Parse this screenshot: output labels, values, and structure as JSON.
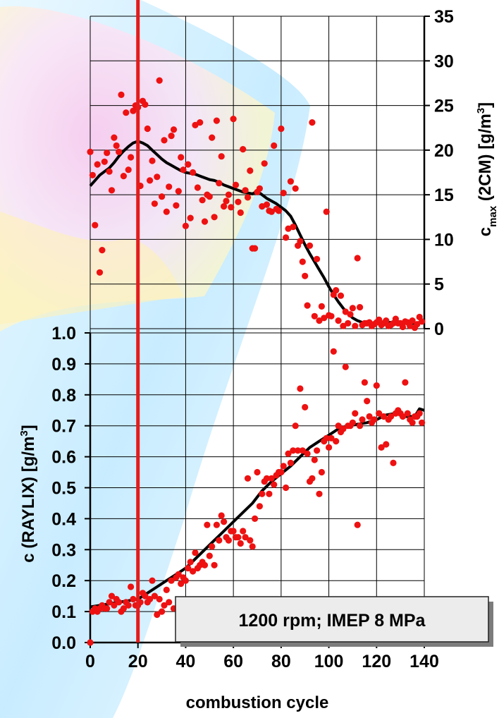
{
  "chart_data": [
    {
      "panel": "upper",
      "type": "scatter",
      "x_range": [
        0,
        140
      ],
      "ylim": [
        0,
        35
      ],
      "y_ticks": [
        0,
        5,
        10,
        15,
        20,
        25,
        30,
        35
      ],
      "y_tick_labels": [
        "0",
        "5",
        "10",
        "15",
        "20",
        "25",
        "30",
        "35"
      ],
      "ylabel": {
        "main": "c",
        "sub": "max",
        "rest": " (2CM) [g/m",
        "sup": "3",
        "end": "]"
      },
      "y_axis_side": "right",
      "grid": true,
      "colors": {
        "points": "#ee1111",
        "line": "#000000"
      },
      "series": [
        {
          "kind": "points",
          "x": [
            0,
            1,
            2,
            3,
            4,
            5,
            6,
            7,
            8,
            9,
            10,
            11,
            12,
            13,
            14,
            15,
            16,
            17,
            18,
            19,
            20,
            21,
            22,
            23,
            24,
            25,
            26,
            27,
            28,
            29,
            30,
            31,
            32,
            33,
            34,
            35,
            36,
            37,
            38,
            39,
            40,
            41,
            42,
            43,
            44,
            45,
            46,
            47,
            48,
            49,
            50,
            51,
            52,
            53,
            54,
            55,
            56,
            57,
            58,
            59,
            60,
            61,
            62,
            63,
            64,
            65,
            66,
            67,
            68,
            69,
            70,
            71,
            72,
            73,
            74,
            75,
            76,
            77,
            78,
            79,
            80,
            81,
            82,
            83,
            84,
            85,
            86,
            87,
            88,
            89,
            90,
            91,
            92,
            93,
            94,
            95,
            96,
            97,
            98,
            99,
            100,
            101,
            102,
            103,
            104,
            105,
            106,
            107,
            108,
            109,
            110,
            111,
            112,
            113,
            114,
            115,
            116,
            117,
            118,
            119,
            120,
            121,
            122,
            123,
            124,
            125,
            126,
            127,
            128,
            129,
            130,
            131,
            132,
            133,
            134,
            135,
            136,
            137,
            138,
            139
          ],
          "y": [
            19.8,
            17.2,
            11.6,
            18.4,
            6.3,
            8.8,
            18.7,
            19.7,
            17.6,
            15.5,
            21.4,
            20.5,
            19.8,
            26.2,
            17.1,
            24.2,
            17.8,
            19.2,
            24.4,
            25.0,
            24.8,
            16.0,
            25.5,
            25.1,
            22.4,
            16.6,
            18.8,
            14.0,
            17.0,
            27.8,
            14.8,
            21.1,
            13.1,
            15.9,
            21.6,
            22.3,
            13.8,
            15.4,
            19.2,
            17.8,
            11.5,
            18.4,
            12.4,
            17.5,
            22.8,
            15.8,
            23.1,
            14.4,
            12.0,
            15.0,
            14.8,
            21.4,
            12.5,
            23.3,
            16.3,
            19.3,
            13.7,
            14.3,
            15.0,
            13.6,
            23.5,
            16.1,
            14.2,
            13.0,
            20.1,
            15.5,
            14.7,
            17.7,
            9.0,
            9.0,
            15.3,
            15.7,
            13.7,
            18.5,
            13.9,
            13.2,
            13.1,
            20.5,
            13.4,
            13.2,
            22.4,
            15.2,
            10.2,
            11.2,
            16.5,
            11.4,
            15.7,
            9.3,
            9.8,
            7.5,
            5.9,
            2.6,
            9.3,
            23.1,
            1.4,
            7.8,
            0.9,
            2.5,
            1.2,
            13.1,
            1.5,
            1.4,
            3.8,
            4.3,
            0.9,
            3.7,
            0.3,
            1.9,
            0.6,
            1.6,
            2.3,
            0.3,
            7.9,
            2.4,
            0.4,
            0.6,
            0.6,
            0.7,
            0.3,
            0.5,
            0.7,
            1.0,
            0.4,
            0.6,
            0.9,
            0.3,
            0.4,
            0.6,
            1.1,
            0.6,
            0.6,
            0.2,
            0.8,
            0.7,
            0.3,
            0.9,
            0.1,
            0.5,
            1.3,
            0.8
          ]
        },
        {
          "kind": "line",
          "x": [
            0,
            2,
            4,
            6,
            8,
            10,
            12,
            14,
            16,
            18,
            20,
            22,
            24,
            26,
            28,
            30,
            32,
            34,
            36,
            38,
            40,
            42,
            44,
            46,
            48,
            50,
            52,
            54,
            56,
            58,
            60,
            62,
            64,
            66,
            68,
            70,
            72,
            74,
            76,
            78,
            80,
            82,
            84,
            86,
            88,
            90,
            92,
            94,
            96,
            98,
            100,
            102,
            104,
            106,
            108,
            110,
            112,
            114,
            116,
            118,
            120,
            122,
            124,
            126,
            128,
            130,
            132,
            134,
            136,
            138,
            140
          ],
          "y": [
            16.0,
            16.6,
            17.2,
            17.6,
            18.0,
            18.6,
            19.3,
            19.9,
            20.4,
            20.8,
            21.0,
            20.8,
            20.5,
            20.0,
            19.5,
            19.0,
            18.6,
            18.3,
            18.0,
            17.7,
            17.5,
            17.4,
            17.3,
            17.1,
            16.9,
            16.7,
            16.6,
            16.4,
            16.1,
            15.9,
            15.7,
            15.5,
            15.3,
            15.2,
            15.1,
            15.4,
            15.0,
            14.6,
            14.3,
            14.0,
            13.6,
            13.2,
            12.6,
            11.6,
            10.5,
            9.4,
            8.4,
            7.5,
            6.6,
            5.7,
            4.7,
            3.8,
            3.0,
            2.3,
            1.7,
            1.2,
            0.9,
            0.7,
            0.6,
            0.6,
            0.6,
            0.6,
            0.7,
            0.7,
            0.6,
            0.6,
            0.6,
            0.6,
            0.6,
            0.7,
            0.7
          ]
        }
      ]
    },
    {
      "panel": "lower",
      "type": "scatter",
      "xlabel": "combustion cycle",
      "xlim": [
        0,
        140
      ],
      "x_ticks": [
        0,
        20,
        40,
        60,
        80,
        100,
        120,
        140
      ],
      "x_tick_labels": [
        "0",
        "20",
        "40",
        "60",
        "80",
        "100",
        "120",
        "140"
      ],
      "ylim": [
        0,
        1.0
      ],
      "y_ticks": [
        0,
        0.1,
        0.2,
        0.3,
        0.4,
        0.5,
        0.6,
        0.7,
        0.8,
        0.9,
        1.0
      ],
      "y_tick_labels": [
        "0.0",
        "0.1",
        "0.2",
        "0.3",
        "0.4",
        "0.5",
        "0.6",
        "0.7",
        "0.8",
        "0.9",
        "1.0"
      ],
      "ylabel": {
        "main": "c (RAYLIX) [g/m",
        "sup": "3",
        "end": "]"
      },
      "y_axis_side": "left",
      "grid": true,
      "colors": {
        "points": "#ee1111",
        "line": "#000000"
      },
      "series": [
        {
          "kind": "points",
          "x": [
            0,
            1,
            2,
            3,
            4,
            5,
            6,
            7,
            8,
            9,
            10,
            11,
            12,
            13,
            14,
            15,
            16,
            17,
            18,
            19,
            20,
            21,
            22,
            23,
            24,
            25,
            26,
            27,
            28,
            29,
            30,
            31,
            32,
            33,
            34,
            35,
            36,
            37,
            38,
            39,
            40,
            41,
            42,
            43,
            44,
            45,
            46,
            47,
            48,
            49,
            50,
            51,
            52,
            53,
            54,
            55,
            56,
            57,
            58,
            59,
            60,
            61,
            62,
            63,
            64,
            65,
            66,
            67,
            68,
            69,
            70,
            71,
            72,
            73,
            74,
            75,
            76,
            77,
            78,
            79,
            80,
            81,
            82,
            83,
            84,
            85,
            86,
            87,
            88,
            89,
            90,
            91,
            92,
            93,
            94,
            95,
            96,
            97,
            98,
            99,
            100,
            101,
            102,
            103,
            104,
            105,
            106,
            107,
            108,
            109,
            110,
            111,
            112,
            113,
            114,
            115,
            116,
            117,
            118,
            119,
            120,
            121,
            122,
            123,
            124,
            125,
            126,
            127,
            128,
            129,
            130,
            131,
            132,
            133,
            134,
            135,
            136,
            137,
            138,
            139
          ],
          "y": [
            0.0,
            0.1,
            0.11,
            0.1,
            0.11,
            0.12,
            0.11,
            0.11,
            0.13,
            0.15,
            0.12,
            0.14,
            0.13,
            0.1,
            0.11,
            0.13,
            0.12,
            0.18,
            0.14,
            0.12,
            0.12,
            0.13,
            0.16,
            0.15,
            0.13,
            0.14,
            0.2,
            0.15,
            0.09,
            0.14,
            0.1,
            0.12,
            0.17,
            0.13,
            0.2,
            0.11,
            0.21,
            0.22,
            0.19,
            0.21,
            0.2,
            0.24,
            0.26,
            0.23,
            0.29,
            0.24,
            0.25,
            0.26,
            0.25,
            0.38,
            0.28,
            0.31,
            0.25,
            0.38,
            0.33,
            0.41,
            0.39,
            0.34,
            0.33,
            0.36,
            0.36,
            0.34,
            0.34,
            0.32,
            0.36,
            0.34,
            0.53,
            0.33,
            0.31,
            0.4,
            0.55,
            0.44,
            0.48,
            0.52,
            0.53,
            0.48,
            0.53,
            0.51,
            0.54,
            0.55,
            0.55,
            0.57,
            0.5,
            0.61,
            0.58,
            0.62,
            0.7,
            0.62,
            0.82,
            0.62,
            0.76,
            0.61,
            0.52,
            0.53,
            0.59,
            0.62,
            0.48,
            0.55,
            0.65,
            0.66,
            0.63,
            0.66,
            0.94,
            0.65,
            0.7,
            0.68,
            0.69,
            0.89,
            0.7,
            0.7,
            0.71,
            0.74,
            0.38,
            0.7,
            0.72,
            0.84,
            0.78,
            0.73,
            0.71,
            0.72,
            0.83,
            0.74,
            0.63,
            0.73,
            0.64,
            0.72,
            0.73,
            0.58,
            0.74,
            0.75,
            0.74,
            0.73,
            0.84,
            0.74,
            0.72,
            0.71,
            0.73,
            0.73,
            0.74,
            0.71
          ]
        },
        {
          "kind": "line",
          "x": [
            0,
            4,
            8,
            12,
            16,
            20,
            24,
            28,
            32,
            36,
            40,
            44,
            48,
            52,
            56,
            60,
            64,
            68,
            72,
            76,
            80,
            84,
            88,
            92,
            96,
            100,
            104,
            108,
            112,
            116,
            120,
            124,
            128,
            132,
            136,
            138,
            140
          ],
          "y": [
            0.115,
            0.12,
            0.125,
            0.13,
            0.135,
            0.14,
            0.16,
            0.18,
            0.2,
            0.22,
            0.24,
            0.27,
            0.3,
            0.33,
            0.36,
            0.39,
            0.42,
            0.45,
            0.49,
            0.52,
            0.545,
            0.57,
            0.6,
            0.63,
            0.65,
            0.67,
            0.69,
            0.7,
            0.705,
            0.71,
            0.72,
            0.735,
            0.74,
            0.73,
            0.73,
            0.755,
            0.75
          ]
        }
      ]
    }
  ],
  "annotation": {
    "text": "1200 rpm; IMEP 8 MPa"
  },
  "marker_line": {
    "x": 20,
    "color": "#e31b1b"
  },
  "colors": {
    "grid": "#000000",
    "axis": "#000000",
    "background_light": "#dcf4ff",
    "background_pink": "#ffc8ec",
    "background_yellow": "#fff6c8"
  }
}
